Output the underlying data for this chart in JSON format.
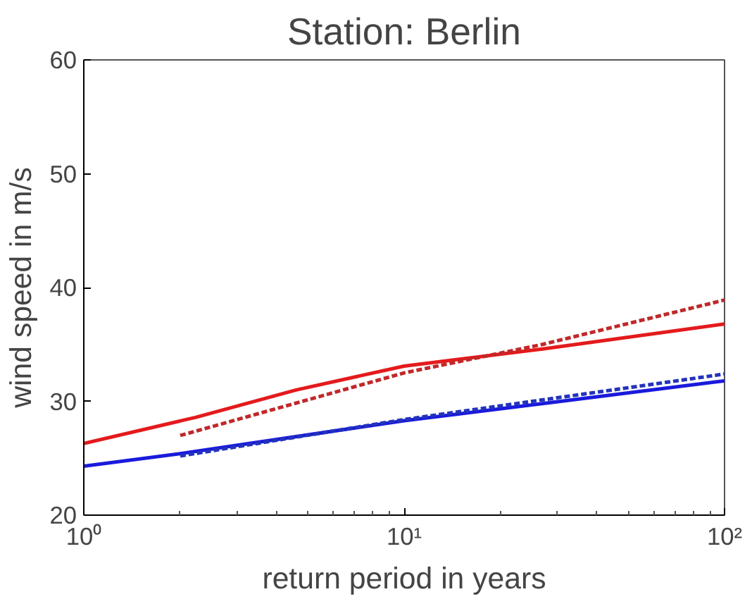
{
  "chart_data": {
    "type": "line",
    "title": "Station: Berlin",
    "xlabel": "return period in years",
    "ylabel": "wind speed in m/s",
    "log": "x",
    "grid": false,
    "xlim": [
      1,
      100
    ],
    "ylim": [
      20,
      60
    ],
    "xticks": [
      {
        "value": 1,
        "label": "10⁰"
      },
      {
        "value": 10,
        "label": "10¹"
      },
      {
        "value": 100,
        "label": "10²"
      }
    ],
    "yticks": [
      20,
      30,
      40,
      50,
      60
    ],
    "series": [
      {
        "color": "#e41a1c",
        "line_style": "solid",
        "x": [
          1,
          2.24,
          4.6,
          10,
          27,
          100
        ],
        "values": [
          26.3,
          28.6,
          31.0,
          33.1,
          34.6,
          36.8
        ]
      },
      {
        "color": "#c0282a",
        "line_style": "dashed",
        "x": [
          2,
          10,
          27,
          100
        ],
        "values": [
          27.0,
          32.5,
          35.0,
          38.9
        ]
      },
      {
        "color": "#1a1adc",
        "line_style": "solid",
        "x": [
          1,
          2,
          10,
          27,
          100
        ],
        "values": [
          24.3,
          25.4,
          28.3,
          29.8,
          31.8
        ]
      },
      {
        "color": "#2233bb",
        "line_style": "dashed",
        "x": [
          2,
          10,
          100
        ],
        "values": [
          25.2,
          28.4,
          32.4
        ]
      }
    ]
  }
}
